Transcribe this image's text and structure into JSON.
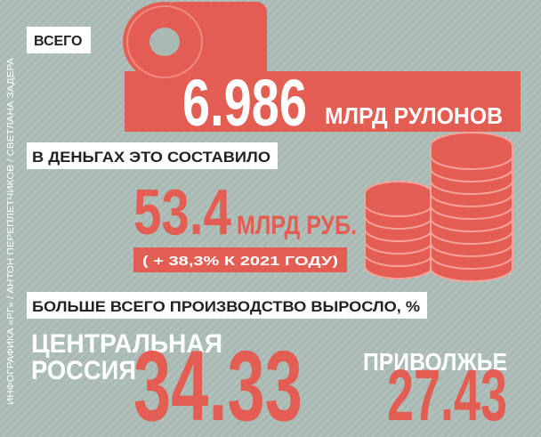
{
  "credit": "ИНФОГРАФИКА «РГ» / АНТОН ПЕРЕПЛЕТЧИКОВ / СВЕТЛАНА ЗАДЕРА",
  "total": {
    "label": "ВСЕГО",
    "value": "6.986",
    "unit": "МЛРД РУЛОНОВ"
  },
  "money": {
    "label": "В ДЕНЬГАХ ЭТО СОСТАВИЛО",
    "value": "53.4",
    "unit": "МЛРД РУБ.",
    "change": "( + 38,3% К 2021 ГОДУ)"
  },
  "growth": {
    "label": "БОЛЬШЕ ВСЕГО ПРОИЗВОДСТВО ВЫРОСЛО, %",
    "regions": [
      {
        "name": [
          "ЦЕНТРАЛЬНАЯ",
          "РОССИЯ"
        ],
        "value": "34.33"
      },
      {
        "name": [
          "ПРИВОЛЖЬЕ"
        ],
        "value": "27.43"
      }
    ]
  }
}
